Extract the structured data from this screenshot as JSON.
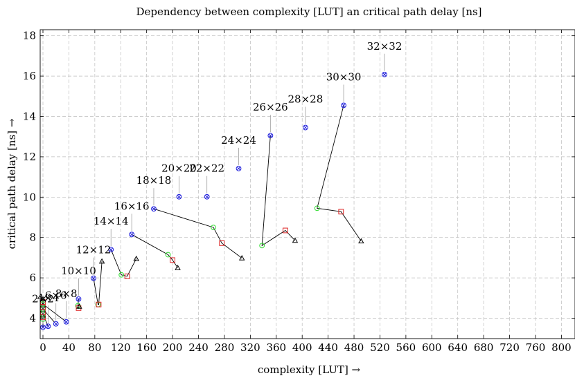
{
  "chart_data": {
    "type": "scatter",
    "title": "Dependency between complexity [LUT] an critical path delay [ns]",
    "xlabel": "complexity [LUT] →",
    "ylabel": "critical path delay [ns] →",
    "xlim": [
      0,
      800
    ],
    "ylim": [
      3,
      18
    ],
    "xticks": [
      0,
      40,
      80,
      120,
      160,
      200,
      240,
      280,
      320,
      360,
      400,
      440,
      480,
      520,
      560,
      600,
      640,
      680,
      720,
      760,
      800
    ],
    "yticks": [
      4,
      6,
      8,
      10,
      12,
      14,
      16,
      18
    ],
    "grid": true,
    "groups": [
      {
        "label": "2×2",
        "points": [
          {
            "marker": "blue",
            "x": 0,
            "y": 3.55
          },
          {
            "marker": "green",
            "x": 0,
            "y": 3.95
          },
          {
            "marker": "red",
            "x": 0,
            "y": 4.05
          },
          {
            "marker": "black",
            "x": 0,
            "y": 4.15
          }
        ]
      },
      {
        "label": "4×4",
        "points": [
          {
            "marker": "blue",
            "x": 8,
            "y": 3.6
          },
          {
            "marker": "green",
            "x": 0,
            "y": 4.2
          },
          {
            "marker": "red",
            "x": 0,
            "y": 4.3
          },
          {
            "marker": "black",
            "x": 0,
            "y": 4.4
          }
        ]
      },
      {
        "label": "6×6",
        "points": [
          {
            "marker": "blue",
            "x": 20,
            "y": 3.72
          },
          {
            "marker": "green",
            "x": 0,
            "y": 4.45
          },
          {
            "marker": "red",
            "x": 0,
            "y": 4.55
          },
          {
            "marker": "black",
            "x": 0,
            "y": 4.65
          }
        ]
      },
      {
        "label": "8×8",
        "points": [
          {
            "marker": "blue",
            "x": 36,
            "y": 3.82
          },
          {
            "marker": "green",
            "x": 0,
            "y": 4.7
          },
          {
            "marker": "red",
            "x": 0,
            "y": 4.8
          },
          {
            "marker": "black",
            "x": 0,
            "y": 4.95
          }
        ]
      },
      {
        "label": "10×10",
        "points": [
          {
            "marker": "blue",
            "x": 55,
            "y": 4.95
          },
          {
            "marker": "green",
            "x": 54,
            "y": 4.62
          },
          {
            "marker": "red",
            "x": 55,
            "y": 4.5
          },
          {
            "marker": "black",
            "x": 56,
            "y": 4.58
          }
        ]
      },
      {
        "label": "12×12",
        "points": [
          {
            "marker": "blue",
            "x": 78,
            "y": 5.98
          },
          {
            "marker": "green",
            "x": 85,
            "y": 4.68
          },
          {
            "marker": "red",
            "x": 86,
            "y": 4.68
          },
          {
            "marker": "black",
            "x": 91,
            "y": 6.82
          }
        ]
      },
      {
        "label": "14×14",
        "points": [
          {
            "marker": "blue",
            "x": 105,
            "y": 7.4
          },
          {
            "marker": "green",
            "x": 121,
            "y": 6.15
          },
          {
            "marker": "red",
            "x": 130,
            "y": 6.08
          },
          {
            "marker": "black",
            "x": 144,
            "y": 6.95
          }
        ]
      },
      {
        "label": "16×16",
        "points": [
          {
            "marker": "blue",
            "x": 137,
            "y": 8.15
          },
          {
            "marker": "green",
            "x": 193,
            "y": 7.15
          },
          {
            "marker": "red",
            "x": 200,
            "y": 6.88
          },
          {
            "marker": "black",
            "x": 208,
            "y": 6.5
          }
        ]
      },
      {
        "label": "18×18",
        "points": [
          {
            "marker": "blue",
            "x": 171,
            "y": 9.42
          },
          {
            "marker": "green",
            "x": 263,
            "y": 8.5
          },
          {
            "marker": "red",
            "x": 276,
            "y": 7.72
          },
          {
            "marker": "black",
            "x": 307,
            "y": 6.98
          }
        ]
      },
      {
        "label": "20×20",
        "points": [
          {
            "marker": "blue",
            "x": 210,
            "y": 10.02
          }
        ]
      },
      {
        "label": "22×22",
        "points": [
          {
            "marker": "blue",
            "x": 253,
            "y": 10.02
          }
        ]
      },
      {
        "label": "24×24",
        "points": [
          {
            "marker": "blue",
            "x": 302,
            "y": 11.42
          }
        ]
      },
      {
        "label": "26×26",
        "points": [
          {
            "marker": "blue",
            "x": 351,
            "y": 13.05
          },
          {
            "marker": "green",
            "x": 338,
            "y": 7.6
          },
          {
            "marker": "red",
            "x": 374,
            "y": 8.35
          },
          {
            "marker": "black",
            "x": 389,
            "y": 7.85
          }
        ]
      },
      {
        "label": "28×28",
        "points": [
          {
            "marker": "blue",
            "x": 405,
            "y": 13.45
          }
        ]
      },
      {
        "label": "30×30",
        "points": [
          {
            "marker": "blue",
            "x": 464,
            "y": 14.55
          },
          {
            "marker": "green",
            "x": 423,
            "y": 9.45
          },
          {
            "marker": "red",
            "x": 460,
            "y": 9.28
          },
          {
            "marker": "black",
            "x": 491,
            "y": 7.82
          }
        ]
      },
      {
        "label": "32×32",
        "points": [
          {
            "marker": "blue",
            "x": 527,
            "y": 16.08
          }
        ]
      }
    ],
    "marker_colors": {
      "blue": "#2222dd",
      "green": "#33dd33",
      "red": "#dd2222",
      "black": "#000000"
    }
  }
}
